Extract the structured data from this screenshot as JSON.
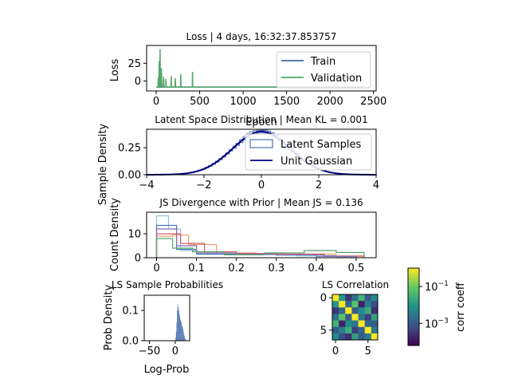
{
  "chart_data": [
    {
      "id": "loss",
      "type": "line",
      "title": "Loss | 4 days, 16:32:37.853757",
      "xlabel": "Epoch",
      "ylabel": "Loss",
      "xlim": [
        -110,
        2530
      ],
      "ylim": [
        -14,
        50
      ],
      "xticks": [
        0,
        500,
        1000,
        1500,
        2000,
        2500
      ],
      "yticks": [
        0,
        25
      ],
      "legend_loc": "upper-right",
      "series": [
        {
          "name": "Train",
          "color": "#3b6ba5",
          "x": [
            0,
            2400
          ],
          "y": [
            -8.5,
            -8.5
          ]
        },
        {
          "name": "Validation",
          "color": "#55a868",
          "x": [
            0,
            20,
            25,
            30,
            35,
            40,
            45,
            48,
            52,
            56,
            60,
            65,
            70,
            80,
            85,
            90,
            100,
            110,
            112,
            115,
            120,
            130,
            140,
            160,
            170,
            173,
            176,
            180,
            190,
            200,
            215,
            220,
            225,
            230,
            240,
            250,
            280,
            283,
            286,
            290,
            300,
            400,
            415,
            418,
            421,
            425,
            440,
            600,
            800,
            1000,
            1500,
            2000,
            2400
          ],
          "y": [
            -8.5,
            -8.5,
            5,
            -8.5,
            28,
            -8.5,
            45,
            -8.5,
            12,
            -8.5,
            18,
            -8.5,
            -8.5,
            -8.5,
            6,
            -8.5,
            -8.5,
            -8.5,
            3,
            -8.5,
            -8.5,
            -8.5,
            -8.5,
            -8.5,
            -8.5,
            7,
            -8.5,
            -8.5,
            -8.5,
            -8.5,
            -8.5,
            4,
            -8.5,
            -8.5,
            -8.5,
            -8.5,
            -8.5,
            10,
            -8.5,
            -8.5,
            -8.5,
            -8.5,
            -8.5,
            13,
            -8.5,
            -8.5,
            -8.5,
            -8.5,
            -8.5,
            -8.5,
            -8.5,
            -8.5,
            -8.5
          ]
        }
      ]
    },
    {
      "id": "latent",
      "type": "line",
      "title": "Latent Space Distribution | Mean KL = 0.001",
      "ylabel": "Sample Density",
      "xlim": [
        -4,
        4
      ],
      "ylim": [
        0,
        0.42
      ],
      "xticks": [
        -4,
        -2,
        0,
        2,
        4
      ],
      "yticks": [
        0.0,
        0.25
      ],
      "ytick_labels": [
        "0.00",
        "0.25"
      ],
      "legend_loc": "upper-right",
      "series": [
        {
          "name": "Latent Samples",
          "color": "#4c72b0",
          "kind": "histogram"
        },
        {
          "name": "Unit Gaussian",
          "color": "#000080",
          "kind": "pdf",
          "mu": 0,
          "sigma": 1
        }
      ]
    },
    {
      "id": "js",
      "type": "histogram",
      "title": "JS Divergence with Prior | Mean JS = 0.136",
      "ylabel": "Count Density",
      "xlim": [
        -0.025,
        0.55
      ],
      "ylim": [
        0,
        19
      ],
      "xticks": [
        0.0,
        0.1,
        0.2,
        0.3,
        0.4,
        0.5
      ],
      "yticks": [
        0,
        10
      ],
      "series": [
        {
          "color": "#87c6e6",
          "edges": [
            0.0,
            0.03,
            0.06,
            0.1,
            0.15,
            0.2,
            0.25,
            0.3,
            0.35,
            0.4,
            0.45,
            0.5
          ],
          "density": [
            17.5,
            12,
            3,
            1.5,
            1.5,
            1.8,
            1.2,
            1.0,
            0.8,
            0.5,
            0.3
          ]
        },
        {
          "color": "#4c72b0",
          "edges": [
            0.0,
            0.05,
            0.1,
            0.2,
            0.3,
            0.42,
            0.52
          ],
          "density": [
            13.5,
            3.5,
            1.5,
            1.8,
            1.2,
            0.8
          ]
        },
        {
          "color": "#e8a070",
          "edges": [
            0.0,
            0.04,
            0.08,
            0.15,
            0.25,
            0.35,
            0.45,
            0.52
          ],
          "density": [
            9,
            9.5,
            5.5,
            2,
            1.5,
            1.5,
            0.8
          ]
        },
        {
          "color": "#d6616b",
          "edges": [
            0.0,
            0.06,
            0.12,
            0.2,
            0.32,
            0.42,
            0.52
          ],
          "density": [
            10,
            6,
            2.5,
            1.8,
            1.5,
            0.6
          ]
        },
        {
          "color": "#8c6bb1",
          "edges": [
            0.0,
            0.05,
            0.1,
            0.2,
            0.3,
            0.4,
            0.5
          ],
          "density": [
            12,
            5,
            2,
            1.5,
            1.2,
            0.6
          ]
        },
        {
          "color": "#55a868",
          "edges": [
            0.0,
            0.04,
            0.09,
            0.17,
            0.27,
            0.37,
            0.45,
            0.52
          ],
          "density": [
            8,
            4,
            2.5,
            1.2,
            2.0,
            3.0,
            2.2
          ]
        }
      ]
    },
    {
      "id": "lsprob",
      "type": "histogram",
      "title": "LS Sample Probabilities",
      "xlabel": "Log-Prob",
      "ylabel": "Prob Density",
      "xlim": [
        -60,
        28
      ],
      "ylim": [
        0,
        0.15
      ],
      "xticks": [
        -50,
        0
      ],
      "yticks": [
        0.0,
        0.1
      ],
      "color": "#4c72b0",
      "bin_centers": [
        1,
        2,
        3,
        4,
        5,
        6,
        7,
        8,
        9,
        10,
        11,
        12,
        13,
        14,
        15,
        16,
        17,
        18,
        19,
        20,
        21
      ],
      "density": [
        0.01,
        0.03,
        0.06,
        0.1,
        0.12,
        0.11,
        0.1,
        0.09,
        0.08,
        0.07,
        0.065,
        0.06,
        0.05,
        0.045,
        0.04,
        0.03,
        0.02,
        0.015,
        0.008,
        0.004,
        0.001
      ]
    },
    {
      "id": "corr",
      "type": "heatmap",
      "title": "LS Correlation",
      "xticks": [
        0,
        5
      ],
      "yticks": [
        0,
        5
      ],
      "colorbar_label": "corr coeff",
      "colorbar_ticks": [
        {
          "label_base": "10",
          "label_exp": "−1",
          "log": -1
        },
        {
          "label_base": "10",
          "label_exp": "−3",
          "log": -3
        }
      ],
      "colorbar_range_log": [
        -4.2,
        0
      ],
      "values_log": [
        [
          0.0,
          -2.0,
          -3.5,
          -2.6,
          -1.5,
          -3.0,
          -2.2
        ],
        [
          -2.0,
          0.0,
          -2.8,
          -1.2,
          -3.8,
          -2.4,
          -3.2
        ],
        [
          -3.5,
          -2.8,
          0.0,
          -3.0,
          -2.2,
          -1.6,
          -3.6
        ],
        [
          -2.6,
          -1.2,
          -3.0,
          0.0,
          -2.6,
          -3.4,
          -1.8
        ],
        [
          -1.5,
          -3.8,
          -2.2,
          -2.6,
          0.0,
          -2.8,
          -3.0
        ],
        [
          -3.0,
          -2.4,
          -1.6,
          -3.4,
          -2.8,
          0.0,
          -2.5
        ],
        [
          -2.2,
          -3.2,
          -3.6,
          -1.8,
          -3.0,
          -2.5,
          0.0
        ]
      ]
    }
  ]
}
